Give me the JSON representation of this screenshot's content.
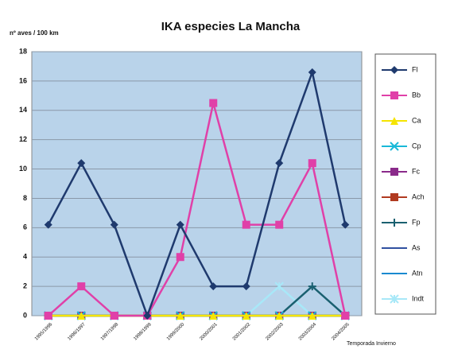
{
  "chart_data": {
    "type": "line",
    "title": "IKA especies La Mancha",
    "y_label": "nº aves / 100 km",
    "x_label": "Temporada Invierno",
    "categories": [
      "1995/1996",
      "1996/1997",
      "1997/1998",
      "1998/1999",
      "1999/2000",
      "2000/2001",
      "2001/2002",
      "2002/2003",
      "2003/2004",
      "2004/2005"
    ],
    "ylim": [
      0,
      18
    ],
    "yticks": [
      0,
      2,
      4,
      6,
      8,
      10,
      12,
      14,
      16,
      18
    ],
    "grid": true,
    "legend": "right",
    "series": [
      {
        "name": "Fl",
        "color": "#1f3a6e",
        "marker": "diamond",
        "values": [
          6.2,
          10.4,
          6.2,
          0,
          6.2,
          2,
          2,
          10.4,
          16.6,
          6.2
        ]
      },
      {
        "name": "Bb",
        "color": "#e040a8",
        "marker": "square",
        "values": [
          0,
          2,
          0,
          0,
          4,
          14.5,
          6.2,
          6.2,
          10.4,
          0
        ]
      },
      {
        "name": "Ca",
        "color": "#f5e400",
        "marker": "triangle",
        "values": [
          0,
          0,
          0,
          0,
          0,
          0,
          0,
          0,
          0,
          0
        ]
      },
      {
        "name": "Cp",
        "color": "#19b8d8",
        "marker": "x",
        "values": [
          0,
          0,
          0,
          0,
          0,
          0,
          0,
          0,
          0,
          0
        ]
      },
      {
        "name": "Fc",
        "color": "#8a2a8a",
        "marker": "square",
        "values": [
          0,
          0,
          0,
          0,
          0,
          0,
          0,
          0,
          0,
          0
        ]
      },
      {
        "name": "Ach",
        "color": "#b03a20",
        "marker": "square",
        "values": [
          0,
          0,
          0,
          0,
          0,
          0,
          0,
          0,
          0,
          0
        ]
      },
      {
        "name": "Fp",
        "color": "#1a6070",
        "marker": "plus",
        "values": [
          0,
          0,
          0,
          0,
          0,
          0,
          0,
          0,
          2,
          0
        ]
      },
      {
        "name": "As",
        "color": "#3050a0",
        "marker": "none",
        "values": [
          0,
          0,
          0,
          0,
          0,
          0,
          0,
          0,
          0,
          0
        ]
      },
      {
        "name": "Atn",
        "color": "#1a8ad0",
        "marker": "none",
        "values": [
          0,
          0,
          0,
          0,
          0,
          0,
          0,
          0,
          0,
          0
        ]
      },
      {
        "name": "Indt",
        "color": "#a8e8f8",
        "marker": "star",
        "values": [
          0,
          0,
          0,
          0,
          0,
          0,
          0,
          2,
          0,
          0
        ]
      }
    ]
  }
}
